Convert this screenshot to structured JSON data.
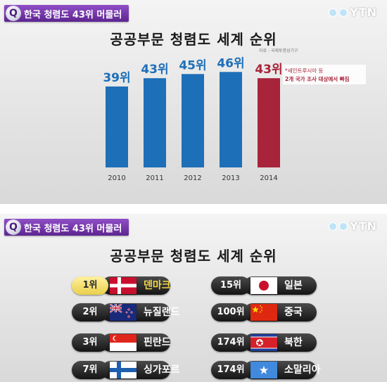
{
  "headline": {
    "text": "한국 청렴도 43위 머물러",
    "icon": "Q"
  },
  "logo": {
    "text": "YTN"
  },
  "chart_data": {
    "type": "bar",
    "title": "공공부문 청렴도 세계 순위",
    "source": "자료 : 국제투명성기구",
    "categories": [
      "2010",
      "2011",
      "2012",
      "2013",
      "2014"
    ],
    "values": [
      39,
      43,
      45,
      46,
      43
    ],
    "value_labels": [
      "39위",
      "43위",
      "45위",
      "46위",
      "43위"
    ],
    "colors": [
      "#1d6fb8",
      "#1d6fb8",
      "#1d6fb8",
      "#1d6fb8",
      "#a8243a"
    ],
    "highlight_color": "#a8243a",
    "annotation": {
      "line1": "*세인트루시아 등",
      "line2": "2개 국가 조사 대상에서 빠짐"
    },
    "grid": false
  },
  "ranking": {
    "title": "공공부문 청렴도 세계 순위",
    "left": [
      {
        "rank": "1위",
        "country": "덴마크",
        "flag": "denmark",
        "highlight": true
      },
      {
        "rank": "2위",
        "country": "뉴질랜드",
        "flag": "new-zealand",
        "highlight": false
      },
      {
        "rank": "3위",
        "country": "핀란드",
        "flag": "singapore",
        "highlight": false
      },
      {
        "rank": "7위",
        "country": "싱가포르",
        "flag": "finland",
        "highlight": false
      }
    ],
    "right": [
      {
        "rank": "15위",
        "country": "일본",
        "flag": "japan",
        "highlight": false
      },
      {
        "rank": "100위",
        "country": "중국",
        "flag": "china",
        "highlight": false
      },
      {
        "rank": "174위",
        "country": "북한",
        "flag": "north-korea",
        "highlight": false
      },
      {
        "rank": "174위",
        "country": "소말리아",
        "flag": "somalia",
        "highlight": false
      }
    ]
  }
}
